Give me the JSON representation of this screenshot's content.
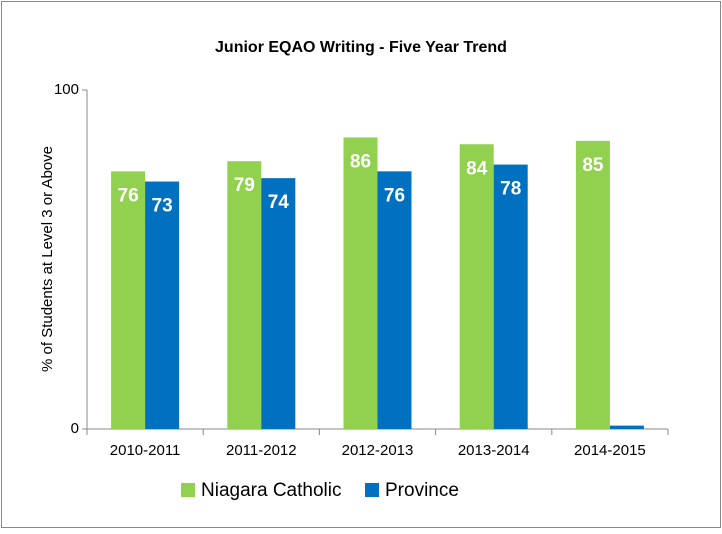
{
  "chart_data": {
    "type": "bar",
    "title": "Junior EQAO Writing - Five Year Trend",
    "y_label": "% of Students at Level 3 or Above",
    "categories": [
      "2010-2011",
      "2011-2012",
      "2012-2013",
      "2013-2014",
      "2014-2015"
    ],
    "series": [
      {
        "name": "Niagara Catholic",
        "color": "#92d050",
        "values": [
          76,
          79,
          86,
          84,
          85
        ]
      },
      {
        "name": "Province",
        "color": "#0070c0",
        "values": [
          73,
          74,
          76,
          78,
          1
        ],
        "value_labels": [
          "73",
          "74",
          "76",
          "78",
          null
        ]
      }
    ],
    "ylim": [
      0,
      100
    ],
    "yticks": [
      0,
      100
    ],
    "legend": "bottom"
  }
}
